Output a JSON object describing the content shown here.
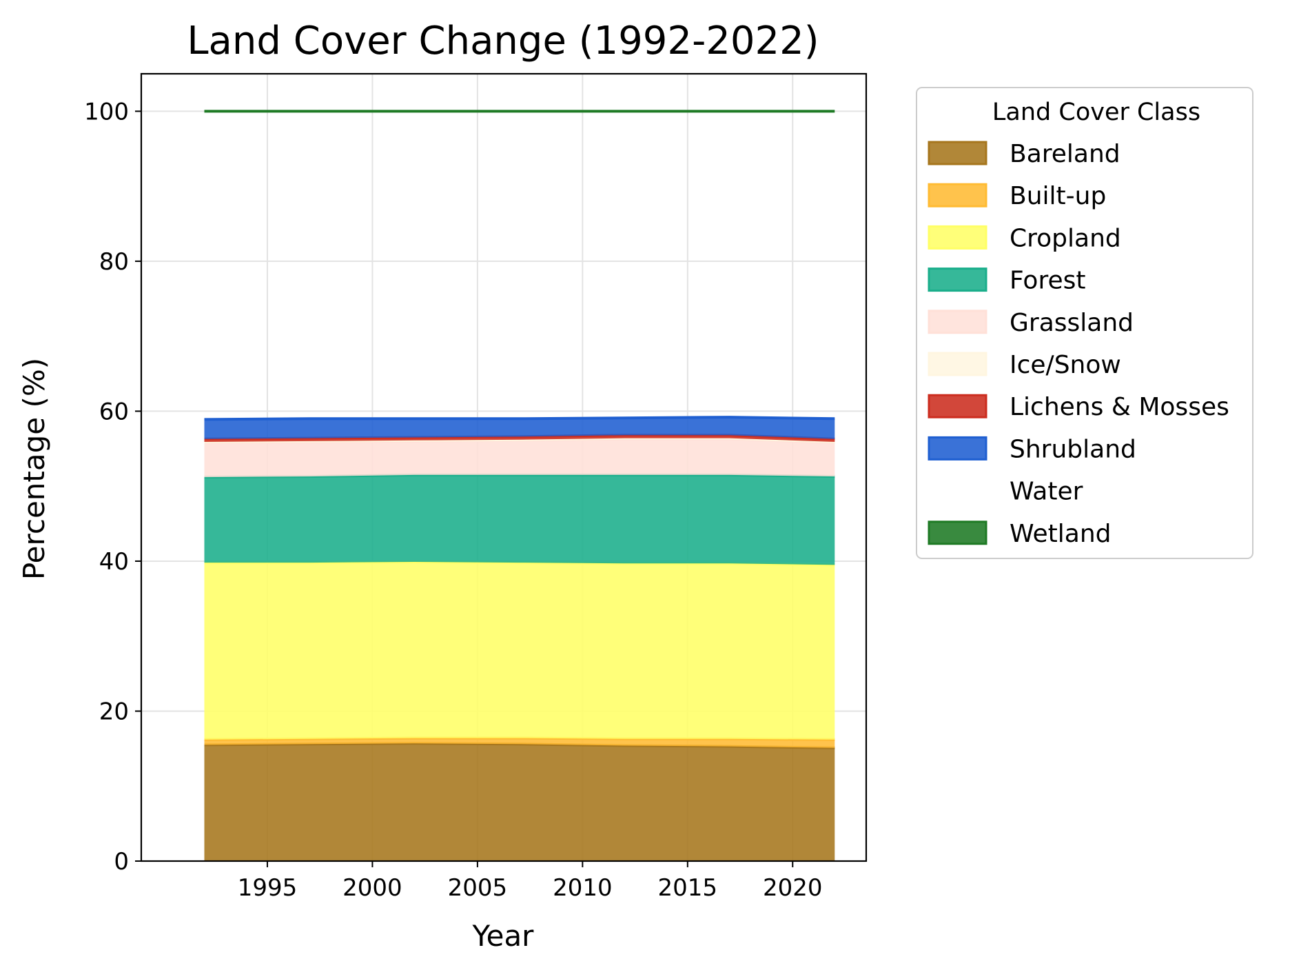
{
  "chart_data": {
    "type": "area",
    "title": "Land Cover Change (1992-2022)",
    "xlabel": "Year",
    "ylabel": "Percentage (%)",
    "xlim": [
      1989,
      2023.5
    ],
    "ylim": [
      0,
      105
    ],
    "x_ticks": [
      "1995",
      "2000",
      "2005",
      "2010",
      "2015",
      "2020"
    ],
    "y_ticks": [
      "0",
      "20",
      "40",
      "60",
      "80",
      "100"
    ],
    "grid": true,
    "stacked": true,
    "legend": {
      "title": "Land Cover Class",
      "placement": "outside-right"
    },
    "x": [
      1992,
      1997,
      2002,
      2007,
      2012,
      2017,
      2022
    ],
    "series": [
      {
        "name": "Bareland",
        "color": "#a6761d",
        "values": [
          15.5,
          15.6,
          15.7,
          15.6,
          15.4,
          15.3,
          15.1
        ]
      },
      {
        "name": "Built-up",
        "color": "#ffbb33",
        "values": [
          0.7,
          0.7,
          0.7,
          0.8,
          0.9,
          1.0,
          1.1
        ]
      },
      {
        "name": "Cropland",
        "color": "#ffff66",
        "values": [
          23.6,
          23.5,
          23.5,
          23.4,
          23.4,
          23.4,
          23.3
        ]
      },
      {
        "name": "Forest",
        "color": "#1aae8b",
        "values": [
          11.4,
          11.5,
          11.6,
          11.7,
          11.8,
          11.8,
          11.8
        ]
      },
      {
        "name": "Grassland",
        "color": "#ffe0d8",
        "values": [
          4.6,
          4.6,
          4.5,
          4.6,
          4.8,
          4.8,
          4.5
        ]
      },
      {
        "name": "Ice/Snow",
        "color": "#fff6e0",
        "values": [
          0.1,
          0.1,
          0.1,
          0.1,
          0.1,
          0.1,
          0.1
        ]
      },
      {
        "name": "Lichens & Mosses",
        "color": "#cc2d1f",
        "values": [
          0.4,
          0.4,
          0.4,
          0.4,
          0.4,
          0.4,
          0.4
        ]
      },
      {
        "name": "Shrubland",
        "color": "#1f5fd1",
        "values": [
          2.6,
          2.6,
          2.5,
          2.4,
          2.3,
          2.4,
          2.7
        ]
      },
      {
        "name": "Water",
        "color": "#ffffff",
        "values": [
          41.1,
          41.0,
          41.0,
          41.0,
          40.9,
          40.8,
          41.0
        ]
      },
      {
        "name": "Wetland",
        "color": "#1e7a24",
        "values": [
          0.0,
          0.0,
          0.0,
          0.0,
          0.0,
          0.0,
          0.0
        ]
      }
    ]
  }
}
